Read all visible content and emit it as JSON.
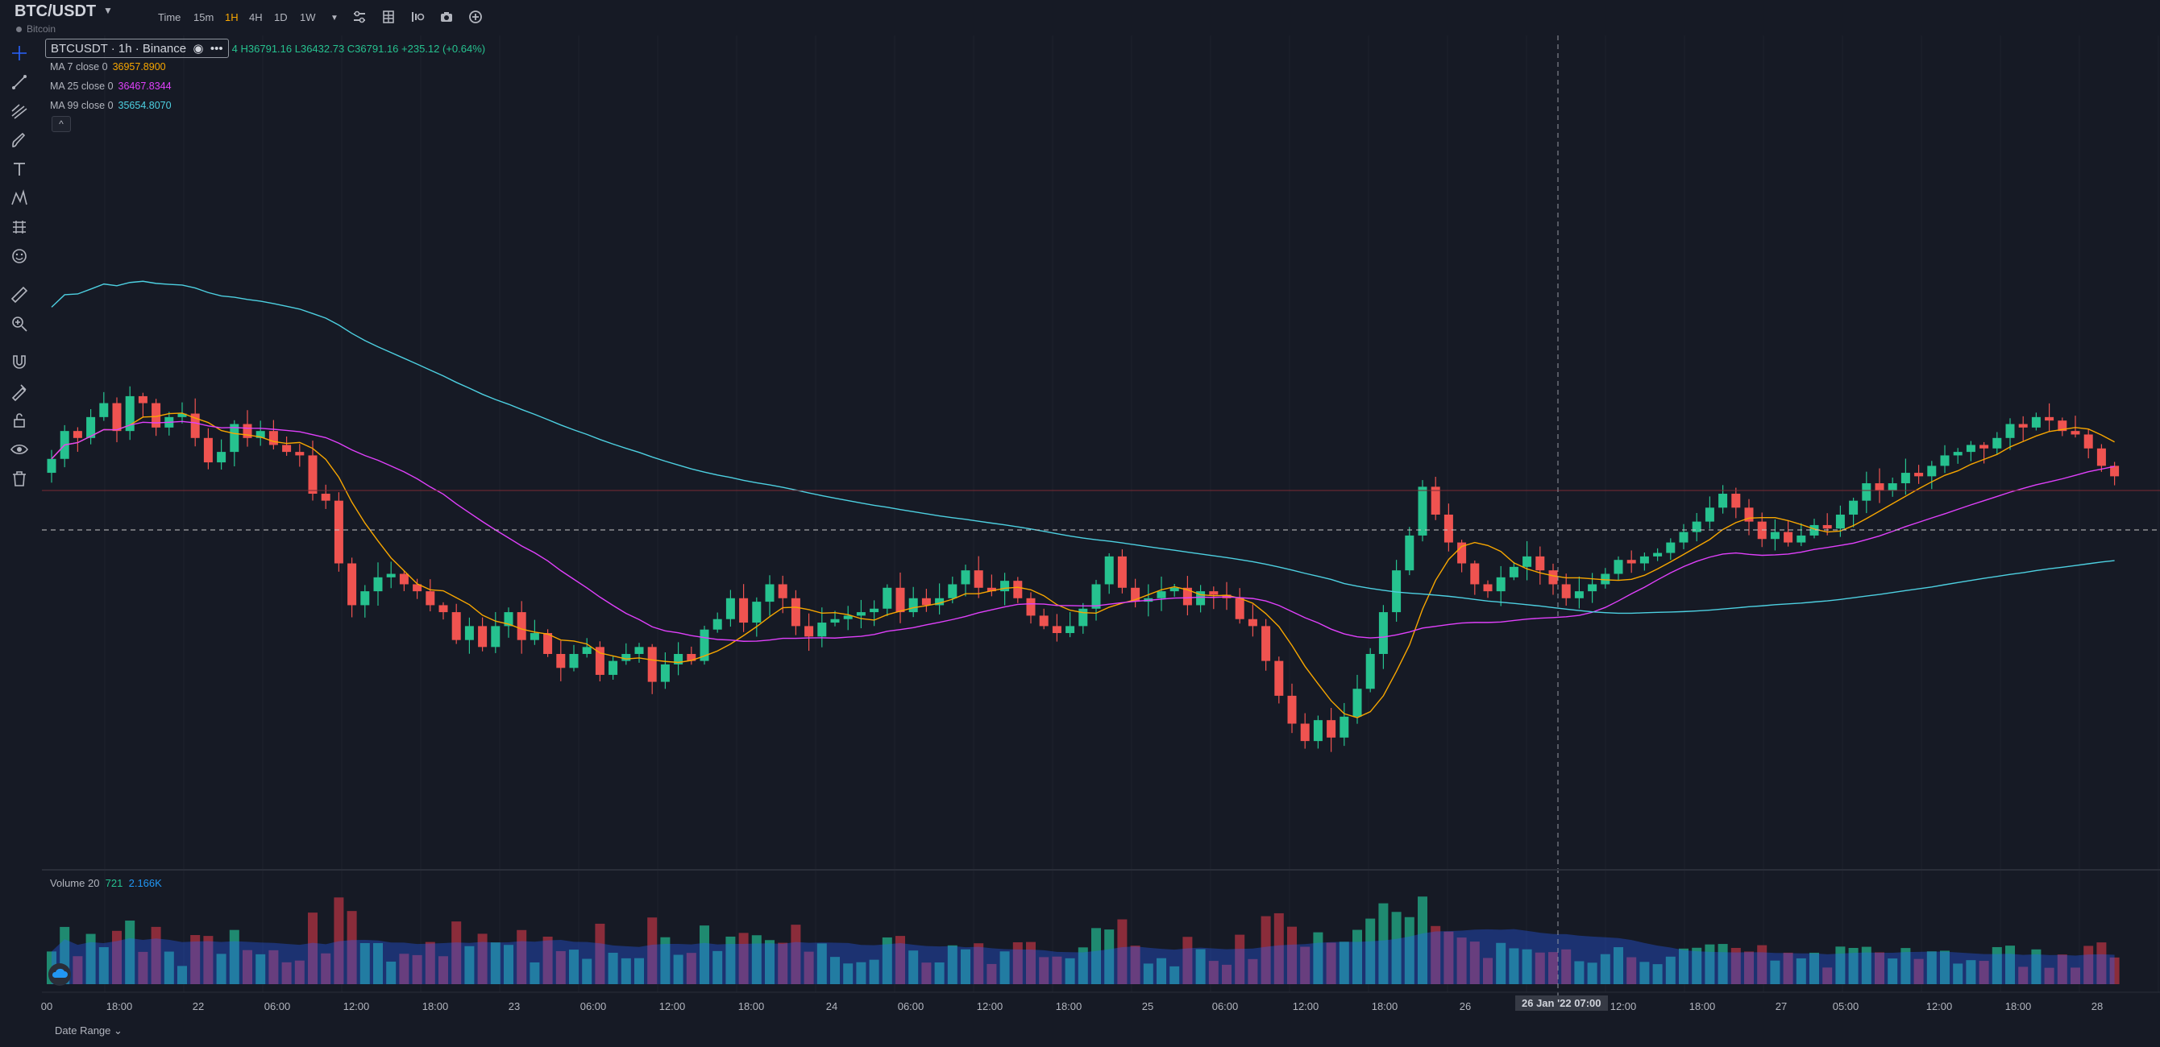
{
  "header": {
    "symbol": "BTC/USDT",
    "subtitle": "Bitcoin",
    "timeframes": [
      "Time",
      "15m",
      "1H",
      "4H",
      "1D",
      "1W"
    ],
    "active_timeframe": "1H"
  },
  "legend": {
    "title": "BTCUSDT · 1h · Binance",
    "ohlc": "4 H36791.16 L36432.73 C36791.16 +235.12 (+0.64%)",
    "ma": [
      {
        "label": "MA 7 close 0",
        "value": "36957.8900",
        "color": "#f7a600"
      },
      {
        "label": "MA 25 close 0",
        "value": "36467.8344",
        "color": "#e040fb"
      },
      {
        "label": "MA 99 close 0",
        "value": "35654.8070",
        "color": "#4dd0e1"
      }
    ]
  },
  "volume": {
    "label": "Volume 20",
    "v1": "721",
    "v2": "2.166K"
  },
  "xaxis": {
    "ticks": [
      "00",
      "18:00",
      "22",
      "06:00",
      "12:00",
      "18:00",
      "23",
      "06:00",
      "12:00",
      "18:00",
      "24",
      "06:00",
      "12:00",
      "18:00",
      "25",
      "06:00",
      "12:00",
      "18:00",
      "26",
      "12:00",
      "18:00",
      "27",
      "05:00",
      "12:00",
      "18:00",
      "28"
    ],
    "crosshair_label": "26 Jan '22   07:00"
  },
  "footer": {
    "date_range": "Date Range"
  },
  "colors": {
    "up": "#26c28f",
    "down": "#ef5350",
    "bg": "#161a25",
    "grid": "#1e222d"
  },
  "chart_data": {
    "type": "candlestick",
    "closes": [
      35300,
      35700,
      35600,
      35900,
      36100,
      35700,
      36200,
      36100,
      35750,
      35900,
      35950,
      35600,
      35250,
      35400,
      35800,
      35600,
      35700,
      35500,
      35400,
      35350,
      34800,
      34700,
      33800,
      33200,
      33400,
      33600,
      33650,
      33500,
      33400,
      33200,
      33100,
      32700,
      32900,
      32600,
      32900,
      33100,
      32700,
      32800,
      32500,
      32300,
      32500,
      32600,
      32200,
      32400,
      32500,
      32600,
      32100,
      32350,
      32500,
      32400,
      32850,
      33000,
      33300,
      32950,
      33250,
      33500,
      33300,
      32900,
      32750,
      32950,
      33000,
      33050,
      33100,
      33150,
      33450,
      33100,
      33300,
      33200,
      33300,
      33500,
      33700,
      33450,
      33400,
      33550,
      33300,
      33050,
      32900,
      32800,
      32900,
      33150,
      33500,
      33900,
      33450,
      33250,
      33300,
      33400,
      33450,
      33200,
      33400,
      33350,
      33300,
      33000,
      32900,
      32400,
      31900,
      31500,
      31250,
      31550,
      31300,
      31600,
      32000,
      32500,
      33100,
      33700,
      34200,
      34900,
      34500,
      34100,
      33800,
      33500,
      33400,
      33600,
      33750,
      33900,
      33700,
      33500,
      33300,
      33400,
      33500,
      33650,
      33850,
      33800,
      33900,
      33950,
      34100,
      34250,
      34400,
      34600,
      34800,
      34600,
      34400,
      34150,
      34250,
      34100,
      34200,
      34350,
      34300,
      34500,
      34700,
      34950,
      34850,
      34950,
      35100,
      35050,
      35200,
      35350,
      35400,
      35500,
      35450,
      35600,
      35800,
      35750,
      35900,
      35850,
      35700,
      35650,
      35450,
      35200,
      35050
    ]
  }
}
